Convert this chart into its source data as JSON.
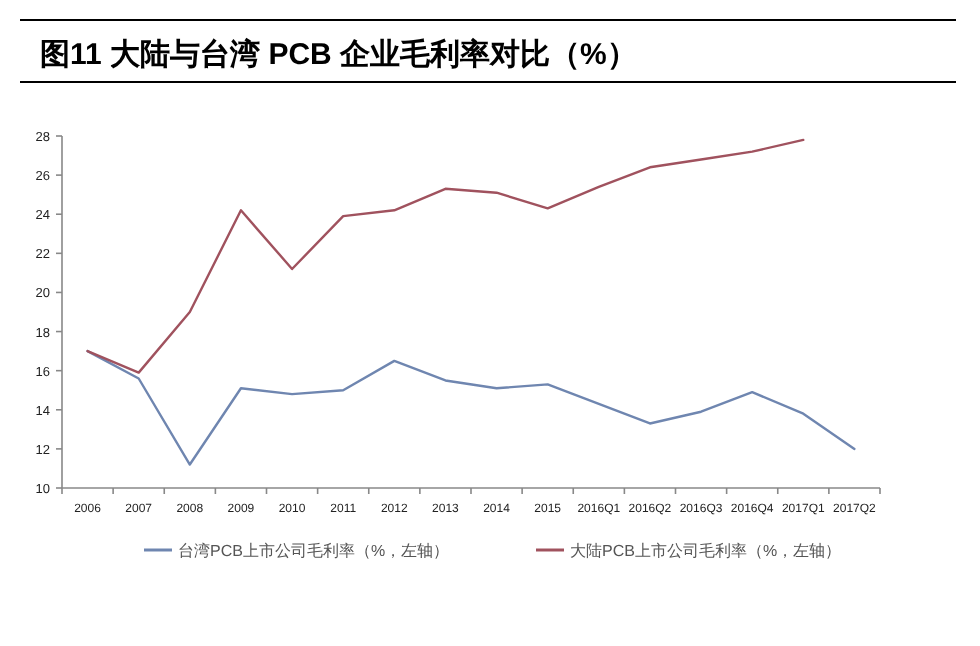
{
  "chart_data": {
    "type": "line",
    "title": "图11 大陆与台湾 PCB 企业毛利率对比（%）",
    "categories": [
      "2006",
      "2007",
      "2008",
      "2009",
      "2010",
      "2011",
      "2012",
      "2013",
      "2014",
      "2015",
      "2016Q1",
      "2016Q2",
      "2016Q3",
      "2016Q4",
      "2017Q1",
      "2017Q2"
    ],
    "series": [
      {
        "name": "台湾PCB上市公司毛利率（%，左轴）",
        "color": "#6f86b0",
        "values": [
          17.0,
          15.6,
          11.2,
          15.1,
          14.8,
          15.0,
          16.5,
          15.5,
          15.1,
          15.3,
          14.3,
          13.3,
          13.9,
          14.9,
          13.8,
          12.0
        ]
      },
      {
        "name": "大陆PCB上市公司毛利率（%，左轴）",
        "color": "#a0525e",
        "values": [
          17.0,
          15.9,
          19.0,
          24.2,
          21.2,
          23.9,
          24.2,
          25.3,
          25.1,
          24.3,
          25.4,
          26.4,
          26.8,
          27.2,
          27.8,
          null
        ]
      }
    ],
    "ylim": [
      10,
      28
    ],
    "yticks": [
      10,
      12,
      14,
      16,
      18,
      20,
      22,
      24,
      26,
      28
    ],
    "legend": "bottom",
    "grid": false
  }
}
